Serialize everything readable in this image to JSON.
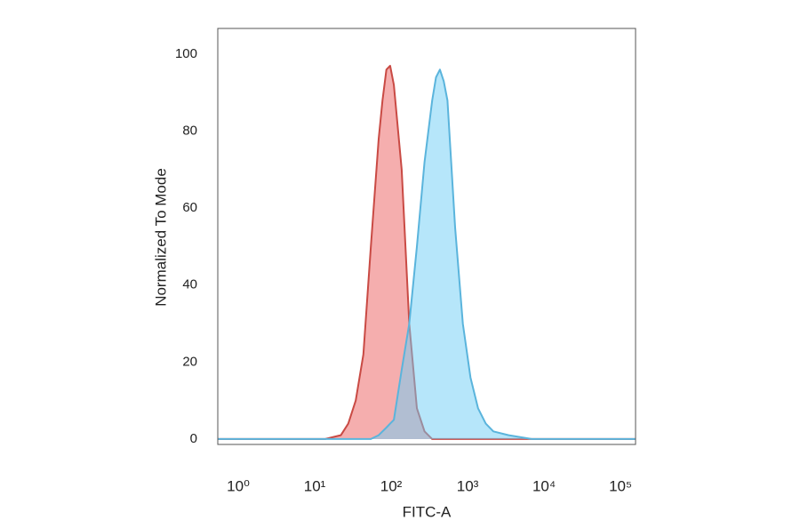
{
  "chart_data": {
    "type": "area",
    "xlabel": "FITC-A",
    "ylabel": "Normalized To Mode",
    "xscale": "log",
    "xlim": [
      0.785,
      229000
    ],
    "ylim": [
      -1.4,
      106.7
    ],
    "xticks": [
      {
        "value": 1,
        "label": "10⁰"
      },
      {
        "value": 10,
        "label": "10¹"
      },
      {
        "value": 100,
        "label": "10²"
      },
      {
        "value": 1000,
        "label": "10³"
      },
      {
        "value": 10000,
        "label": "10⁴"
      },
      {
        "value": 100000,
        "label": "10⁵"
      }
    ],
    "yticks": [
      0,
      20,
      40,
      60,
      80,
      100
    ],
    "grid": false,
    "x": [
      0.79,
      10,
      20,
      32,
      40,
      50,
      63,
      79,
      100,
      112,
      126,
      141,
      158,
      200,
      251,
      316,
      398,
      501,
      562,
      631,
      708,
      794,
      1000,
      1259,
      1585,
      1995,
      2512,
      3162,
      5012,
      10000,
      229000
    ],
    "series": [
      {
        "color": "#c94a44",
        "fill": "rgba(238,120,120,0.6)",
        "values": [
          0,
          0,
          0,
          1,
          4,
          10,
          22,
          50,
          78,
          88,
          96,
          97,
          92,
          70,
          30,
          8,
          2,
          0,
          0,
          0,
          0,
          0,
          0,
          0,
          0,
          0,
          0,
          0,
          0,
          0,
          0
        ]
      },
      {
        "color": "#5ab4dc",
        "fill": "rgba(110,205,245,0.5)",
        "values": [
          0,
          0,
          0,
          0,
          0,
          0,
          0,
          0,
          1,
          2,
          3,
          4,
          5,
          18,
          30,
          50,
          72,
          88,
          94,
          96,
          93,
          88,
          55,
          30,
          16,
          8,
          4,
          2,
          1,
          0,
          0
        ]
      }
    ]
  }
}
